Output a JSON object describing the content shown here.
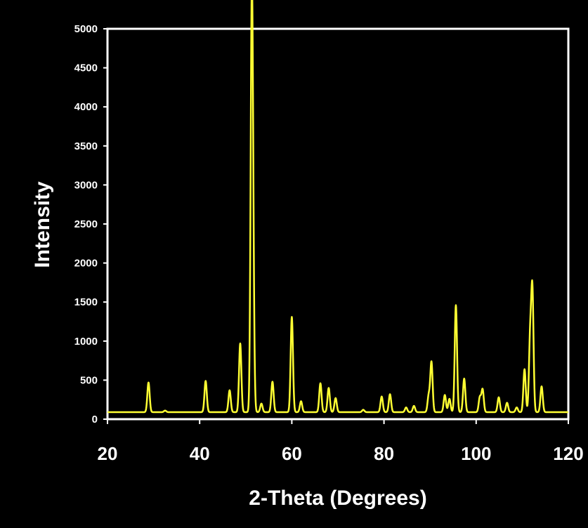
{
  "chart_data": {
    "type": "line",
    "title": "",
    "xlabel": "2-Theta (Degrees)",
    "ylabel": "Intensity",
    "xlim": [
      20,
      120
    ],
    "ylim": [
      0,
      5000
    ],
    "xticks": [
      20,
      40,
      60,
      80,
      100,
      120
    ],
    "yticks": [
      0,
      500,
      1000,
      1500,
      2000,
      2500,
      3000,
      3500,
      4000,
      4500,
      5000
    ],
    "grid": false,
    "legend": "none",
    "series": [
      {
        "color": "#ffff33",
        "baseline": 90,
        "peaks": [
          {
            "x": 28.9,
            "y": 470
          },
          {
            "x": 32.5,
            "y": 110
          },
          {
            "x": 41.3,
            "y": 490
          },
          {
            "x": 46.5,
            "y": 370
          },
          {
            "x": 48.8,
            "y": 970
          },
          {
            "x": 51.3,
            "y": 4860
          },
          {
            "x": 51.6,
            "y": 1500
          },
          {
            "x": 53.4,
            "y": 200
          },
          {
            "x": 55.8,
            "y": 480
          },
          {
            "x": 60.0,
            "y": 1310
          },
          {
            "x": 62.0,
            "y": 230
          },
          {
            "x": 66.2,
            "y": 460
          },
          {
            "x": 68.0,
            "y": 400
          },
          {
            "x": 69.5,
            "y": 270
          },
          {
            "x": 75.5,
            "y": 120
          },
          {
            "x": 79.5,
            "y": 290
          },
          {
            "x": 81.3,
            "y": 320
          },
          {
            "x": 84.8,
            "y": 150
          },
          {
            "x": 86.5,
            "y": 170
          },
          {
            "x": 89.7,
            "y": 300
          },
          {
            "x": 90.3,
            "y": 730
          },
          {
            "x": 93.2,
            "y": 310
          },
          {
            "x": 94.2,
            "y": 260
          },
          {
            "x": 95.6,
            "y": 1460
          },
          {
            "x": 97.4,
            "y": 520
          },
          {
            "x": 100.8,
            "y": 280
          },
          {
            "x": 101.4,
            "y": 380
          },
          {
            "x": 104.9,
            "y": 280
          },
          {
            "x": 106.7,
            "y": 210
          },
          {
            "x": 108.8,
            "y": 150
          },
          {
            "x": 110.5,
            "y": 640
          },
          {
            "x": 111.7,
            "y": 1000
          },
          {
            "x": 112.2,
            "y": 1630
          },
          {
            "x": 114.2,
            "y": 420
          }
        ]
      }
    ]
  }
}
